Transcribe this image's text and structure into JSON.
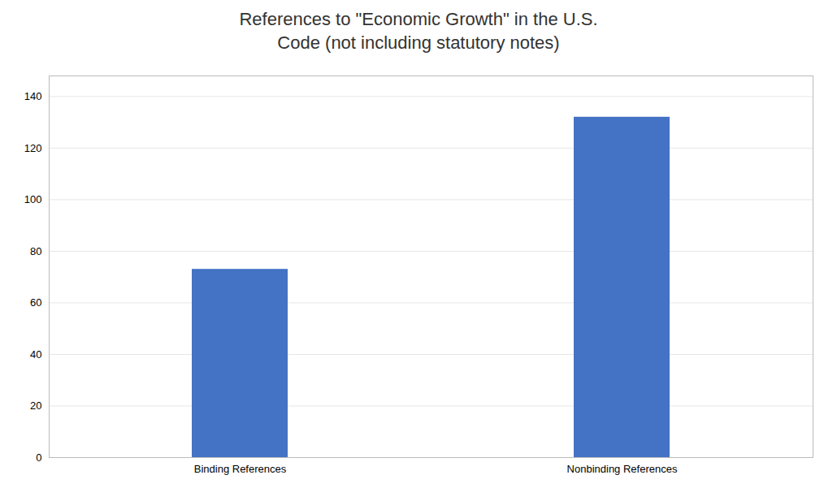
{
  "chart_data": {
    "type": "bar",
    "title": "References to \"Economic Growth\" in the U.S.\nCode (not including statutory notes)",
    "categories": [
      "Binding References",
      "Nonbinding References"
    ],
    "values": [
      73,
      132
    ],
    "color": "#4472C4",
    "ylim": [
      0,
      148
    ],
    "yticks": [
      0,
      20,
      40,
      60,
      80,
      100,
      120,
      140
    ],
    "grid": true
  }
}
